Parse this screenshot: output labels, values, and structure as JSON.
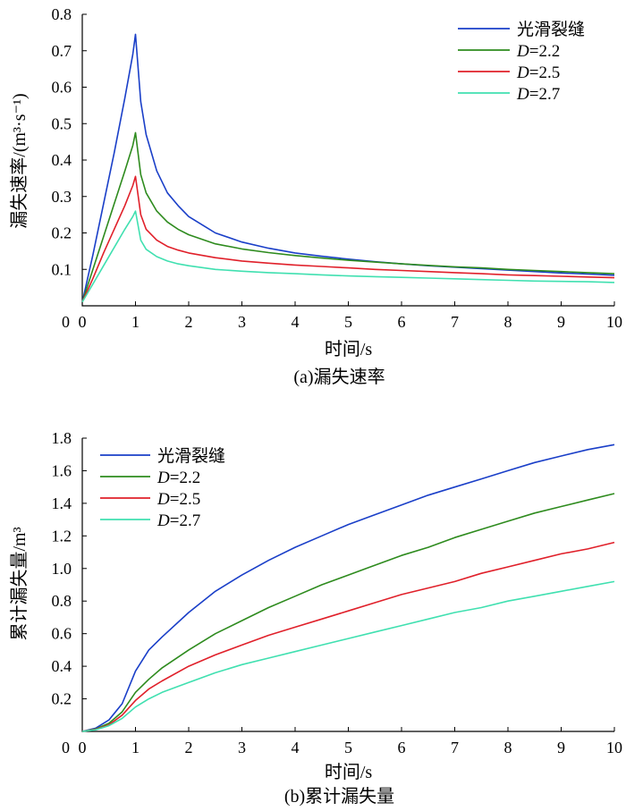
{
  "colors": {
    "smooth": "#1a3fc8",
    "d22": "#2e8b1e",
    "d25": "#e0202a",
    "d27": "#40e0b0"
  },
  "chart_data": [
    {
      "type": "line",
      "caption": "(a)漏失速率",
      "xlabel": "时间/s",
      "ylabel": "漏失速率/(m³·s⁻¹)",
      "xlim": [
        0,
        10
      ],
      "ylim": [
        0,
        0.8
      ],
      "xticks": [
        "0",
        "1",
        "2",
        "3",
        "4",
        "5",
        "6",
        "7",
        "8",
        "9",
        "10"
      ],
      "yticks": [
        "0.1",
        "0.2",
        "0.3",
        "0.4",
        "0.5",
        "0.6",
        "0.7",
        "0.8"
      ],
      "legend_position": "top-right",
      "series": [
        {
          "key": "smooth",
          "name": "光滑裂缝",
          "italic_prefix": "",
          "rest": "光滑裂缝",
          "x": [
            0,
            0.2,
            0.4,
            0.6,
            0.8,
            0.95,
            1.0,
            1.1,
            1.2,
            1.4,
            1.6,
            1.8,
            2,
            2.5,
            3,
            3.5,
            4,
            4.5,
            5,
            5.5,
            6,
            6.5,
            7,
            7.5,
            8,
            8.5,
            9,
            9.5,
            10
          ],
          "y": [
            0.01,
            0.14,
            0.28,
            0.42,
            0.57,
            0.69,
            0.745,
            0.56,
            0.47,
            0.37,
            0.31,
            0.275,
            0.245,
            0.2,
            0.175,
            0.158,
            0.145,
            0.136,
            0.128,
            0.121,
            0.115,
            0.11,
            0.106,
            0.102,
            0.098,
            0.094,
            0.09,
            0.087,
            0.084
          ]
        },
        {
          "key": "d22",
          "name": "D=2.2",
          "italic_prefix": "D",
          "rest": "=2.2",
          "x": [
            0,
            0.2,
            0.4,
            0.6,
            0.8,
            0.95,
            1.0,
            1.1,
            1.2,
            1.4,
            1.6,
            1.8,
            2,
            2.5,
            3,
            3.5,
            4,
            4.5,
            5,
            5.5,
            6,
            6.5,
            7,
            7.5,
            8,
            8.5,
            9,
            9.5,
            10
          ],
          "y": [
            0.01,
            0.1,
            0.19,
            0.28,
            0.37,
            0.44,
            0.475,
            0.36,
            0.31,
            0.26,
            0.23,
            0.21,
            0.195,
            0.17,
            0.156,
            0.146,
            0.138,
            0.131,
            0.125,
            0.12,
            0.115,
            0.111,
            0.107,
            0.104,
            0.1,
            0.097,
            0.094,
            0.091,
            0.088
          ]
        },
        {
          "key": "d25",
          "name": "D=2.5",
          "italic_prefix": "D",
          "rest": "=2.5",
          "x": [
            0,
            0.2,
            0.4,
            0.6,
            0.8,
            0.95,
            1.0,
            1.1,
            1.2,
            1.4,
            1.6,
            1.8,
            2,
            2.5,
            3,
            3.5,
            4,
            4.5,
            5,
            5.5,
            6,
            6.5,
            7,
            7.5,
            8,
            8.5,
            9,
            9.5,
            10
          ],
          "y": [
            0.01,
            0.075,
            0.145,
            0.21,
            0.275,
            0.33,
            0.355,
            0.25,
            0.21,
            0.18,
            0.163,
            0.153,
            0.145,
            0.132,
            0.123,
            0.117,
            0.112,
            0.108,
            0.104,
            0.1,
            0.097,
            0.094,
            0.091,
            0.088,
            0.085,
            0.083,
            0.081,
            0.079,
            0.077
          ]
        },
        {
          "key": "d27",
          "name": "D=2.7",
          "italic_prefix": "D",
          "rest": "=2.7",
          "x": [
            0,
            0.2,
            0.4,
            0.6,
            0.8,
            0.95,
            1.0,
            1.1,
            1.2,
            1.4,
            1.6,
            1.8,
            2,
            2.5,
            3,
            3.5,
            4,
            4.5,
            5,
            5.5,
            6,
            6.5,
            7,
            7.5,
            8,
            8.5,
            9,
            9.5,
            10
          ],
          "y": [
            0.01,
            0.06,
            0.11,
            0.16,
            0.21,
            0.245,
            0.26,
            0.18,
            0.155,
            0.135,
            0.123,
            0.115,
            0.11,
            0.1,
            0.095,
            0.091,
            0.088,
            0.085,
            0.082,
            0.08,
            0.078,
            0.076,
            0.074,
            0.072,
            0.07,
            0.068,
            0.067,
            0.066,
            0.064
          ]
        }
      ]
    },
    {
      "type": "line",
      "caption": "(b)累计漏失量",
      "xlabel": "时间/s",
      "ylabel": "累计漏失量/m³",
      "xlim": [
        0,
        10
      ],
      "ylim": [
        0,
        1.8
      ],
      "xticks": [
        "0",
        "1",
        "2",
        "3",
        "4",
        "5",
        "6",
        "7",
        "8",
        "9",
        "10"
      ],
      "yticks": [
        "0.2",
        "0.4",
        "0.6",
        "0.8",
        "1.0",
        "1.2",
        "1.4",
        "1.6",
        "1.8"
      ],
      "legend_position": "top-left",
      "series": [
        {
          "key": "smooth",
          "name": "光滑裂缝",
          "italic_prefix": "",
          "rest": "光滑裂缝",
          "x": [
            0,
            0.25,
            0.5,
            0.75,
            1,
            1.25,
            1.5,
            2,
            2.5,
            3,
            3.5,
            4,
            4.5,
            5,
            5.5,
            6,
            6.5,
            7,
            7.5,
            8,
            8.5,
            9,
            9.5,
            10
          ],
          "y": [
            0,
            0.02,
            0.07,
            0.17,
            0.37,
            0.5,
            0.58,
            0.73,
            0.86,
            0.96,
            1.05,
            1.13,
            1.2,
            1.27,
            1.33,
            1.39,
            1.45,
            1.5,
            1.55,
            1.6,
            1.65,
            1.69,
            1.73,
            1.76
          ]
        },
        {
          "key": "d22",
          "name": "D=2.2",
          "italic_prefix": "D",
          "rest": "=2.2",
          "x": [
            0,
            0.25,
            0.5,
            0.75,
            1,
            1.25,
            1.5,
            2,
            2.5,
            3,
            3.5,
            4,
            4.5,
            5,
            5.5,
            6,
            6.5,
            7,
            7.5,
            8,
            8.5,
            9,
            9.5,
            10
          ],
          "y": [
            0,
            0.015,
            0.05,
            0.12,
            0.24,
            0.32,
            0.39,
            0.5,
            0.6,
            0.68,
            0.76,
            0.83,
            0.9,
            0.96,
            1.02,
            1.08,
            1.13,
            1.19,
            1.24,
            1.29,
            1.34,
            1.38,
            1.42,
            1.46
          ]
        },
        {
          "key": "d25",
          "name": "D=2.5",
          "italic_prefix": "D",
          "rest": "=2.5",
          "x": [
            0,
            0.25,
            0.5,
            0.75,
            1,
            1.25,
            1.5,
            2,
            2.5,
            3,
            3.5,
            4,
            4.5,
            5,
            5.5,
            6,
            6.5,
            7,
            7.5,
            8,
            8.5,
            9,
            9.5,
            10
          ],
          "y": [
            0,
            0.012,
            0.04,
            0.1,
            0.19,
            0.26,
            0.31,
            0.4,
            0.47,
            0.53,
            0.59,
            0.64,
            0.69,
            0.74,
            0.79,
            0.84,
            0.88,
            0.92,
            0.97,
            1.01,
            1.05,
            1.09,
            1.12,
            1.16
          ]
        },
        {
          "key": "d27",
          "name": "D=2.7",
          "italic_prefix": "D",
          "rest": "=2.7",
          "x": [
            0,
            0.25,
            0.5,
            0.75,
            1,
            1.25,
            1.5,
            2,
            2.5,
            3,
            3.5,
            4,
            4.5,
            5,
            5.5,
            6,
            6.5,
            7,
            7.5,
            8,
            8.5,
            9,
            9.5,
            10
          ],
          "y": [
            0,
            0.01,
            0.035,
            0.08,
            0.15,
            0.2,
            0.24,
            0.3,
            0.36,
            0.41,
            0.45,
            0.49,
            0.53,
            0.57,
            0.61,
            0.65,
            0.69,
            0.73,
            0.76,
            0.8,
            0.83,
            0.86,
            0.89,
            0.92
          ]
        }
      ]
    }
  ]
}
